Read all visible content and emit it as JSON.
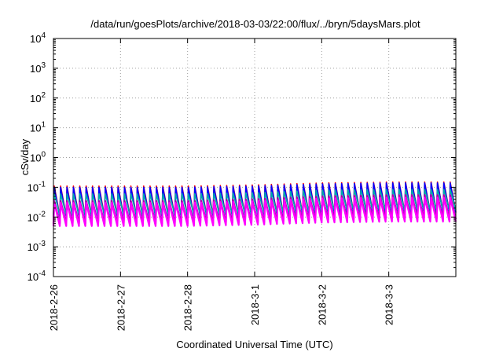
{
  "chart_data": {
    "type": "line",
    "title": "/data/run/goesPlots/archive/2018-03-03/22:00/flux/../bryn/5daysMars.plot",
    "xlabel": "Coordinated Universal Time (UTC)",
    "ylabel": "cSv/day",
    "yscale": "log",
    "ylim": [
      0.0001,
      10000
    ],
    "x_range_days": [
      0,
      6.0
    ],
    "x_ticks": [
      {
        "label": "2018-2-26",
        "day": 0
      },
      {
        "label": "2018-2-27",
        "day": 1
      },
      {
        "label": "2018-2-28",
        "day": 2
      },
      {
        "label": "2018-3-1",
        "day": 3
      },
      {
        "label": "2018-3-2",
        "day": 4
      },
      {
        "label": "2018-3-3",
        "day": 5
      }
    ],
    "y_ticks": [
      {
        "base": "10",
        "exp": "-4",
        "value": 0.0001
      },
      {
        "base": "10",
        "exp": "-3",
        "value": 0.001
      },
      {
        "base": "10",
        "exp": "-2",
        "value": 0.01
      },
      {
        "base": "10",
        "exp": "-1",
        "value": 0.1
      },
      {
        "base": "10",
        "exp": "0",
        "value": 1
      },
      {
        "base": "10",
        "exp": "1",
        "value": 10
      },
      {
        "base": "10",
        "exp": "2",
        "value": 100
      },
      {
        "base": "10",
        "exp": "3",
        "value": 1000
      },
      {
        "base": "10",
        "exp": "4",
        "value": 10000
      }
    ],
    "grid": true,
    "cycles_per_day": 10.5,
    "series": [
      {
        "color": "#ff0000",
        "peak": [
          0.11,
          0.11,
          0.11,
          0.12,
          0.14,
          0.15
        ],
        "trough": [
          0.011,
          0.011,
          0.011,
          0.012,
          0.014,
          0.015
        ]
      },
      {
        "color": "#0000ff",
        "peak": [
          0.1,
          0.1,
          0.1,
          0.11,
          0.13,
          0.14
        ],
        "trough": [
          0.01,
          0.01,
          0.01,
          0.011,
          0.013,
          0.014
        ]
      },
      {
        "color": "#00aaaa",
        "peak": [
          0.06,
          0.06,
          0.06,
          0.065,
          0.08,
          0.085
        ],
        "trough": [
          0.012,
          0.012,
          0.012,
          0.013,
          0.016,
          0.017
        ]
      },
      {
        "color": "#aa00aa",
        "peak": [
          0.035,
          0.035,
          0.035,
          0.04,
          0.05,
          0.055
        ],
        "trough": [
          0.006,
          0.006,
          0.006,
          0.0065,
          0.008,
          0.0085
        ]
      },
      {
        "color": "#ff00ff",
        "peak": [
          0.03,
          0.03,
          0.03,
          0.034,
          0.042,
          0.045
        ],
        "trough": [
          0.005,
          0.005,
          0.005,
          0.0055,
          0.0065,
          0.007
        ]
      }
    ]
  }
}
